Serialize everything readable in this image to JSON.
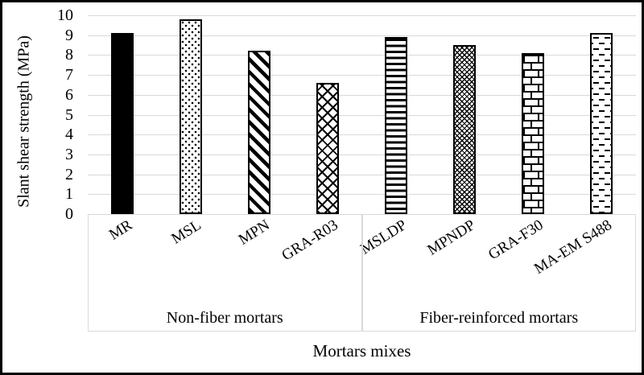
{
  "figure": {
    "background": "#ffffff",
    "border_color": "#000000",
    "gridline_color": "#d9d9d9",
    "group_box_border_color": "#d9d9d9",
    "text_color": "#000000"
  },
  "chart_data": {
    "type": "bar",
    "title": "",
    "xlabel": "Mortars mixes",
    "ylabel": "Slant shear strength (MPa)",
    "ylim": [
      0,
      10
    ],
    "ytick_step": 1,
    "yticks": [
      0,
      1,
      2,
      3,
      4,
      5,
      6,
      7,
      8,
      9,
      10
    ],
    "grid": true,
    "legend": "none",
    "categories": [
      "MR",
      "MSL",
      "MPN",
      "GRA-R03",
      "MSLDP",
      "MPNDP",
      "GRA-F30",
      "MA-EM S488"
    ],
    "values": [
      9.1,
      9.8,
      8.2,
      6.6,
      8.9,
      8.5,
      8.1,
      9.1
    ],
    "bar_patterns": [
      "solid-black",
      "sparse-dots",
      "diagonal-stripes",
      "diamond-lattice",
      "horizontal-lines",
      "dense-diamond",
      "brick",
      "horizontal-dashes"
    ],
    "groups": [
      {
        "label": "Non-fiber mortars",
        "start": 0,
        "end": 3
      },
      {
        "label": "Fiber-reinforced mortars",
        "start": 4,
        "end": 7
      }
    ]
  }
}
